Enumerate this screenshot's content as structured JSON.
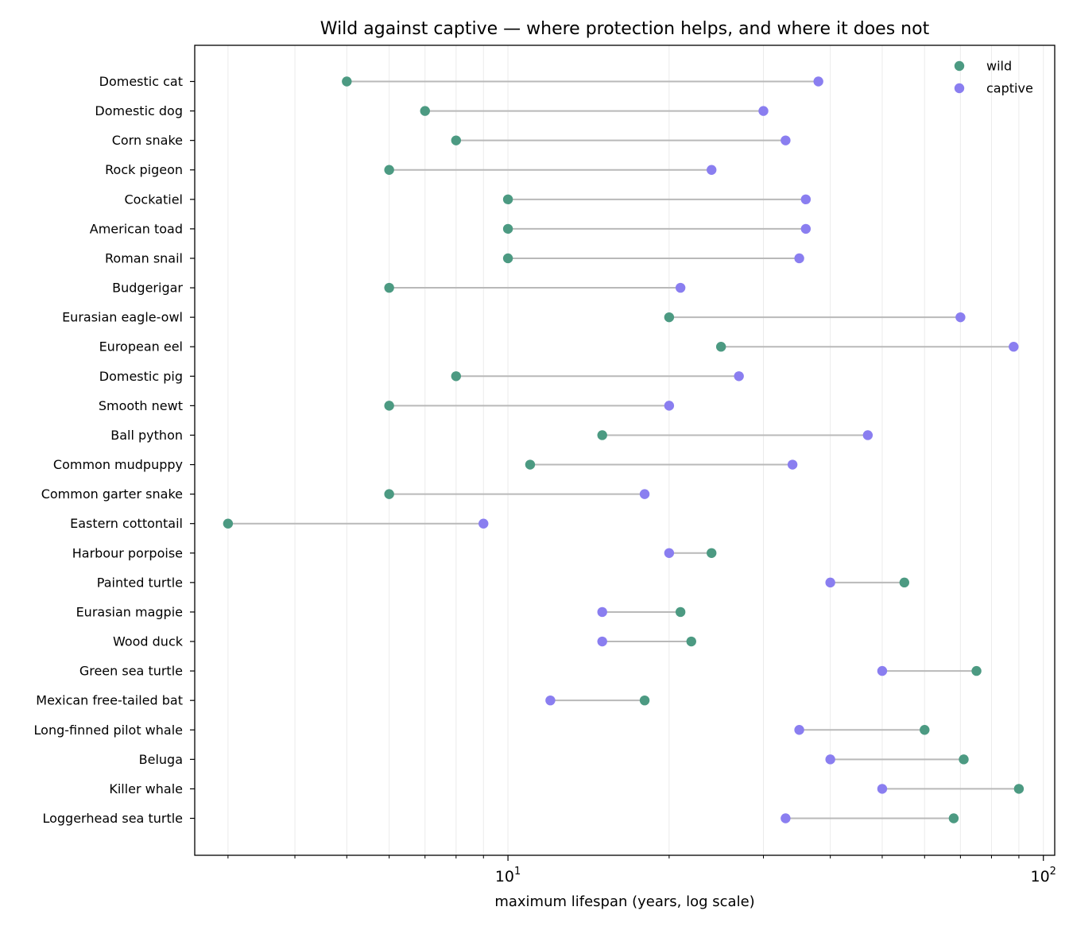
{
  "chart_data": {
    "type": "scatter",
    "subtype": "dumbbell",
    "title": "Wild against captive — where protection helps, and where it does not",
    "xlabel": "maximum lifespan (years, log scale)",
    "ylabel": "",
    "xscale": "log",
    "xlim": [
      2.6,
      105
    ],
    "x_ticks": [
      {
        "base": "10",
        "exp": "1",
        "value": 10
      },
      {
        "base": "10",
        "exp": "2",
        "value": 100
      }
    ],
    "grid": {
      "x_minor": true,
      "y": false
    },
    "legend": {
      "placement": "top-right",
      "entries": [
        "wild",
        "captive"
      ]
    },
    "colors": {
      "wild": "#4c9a82",
      "captive": "#8a7ef0",
      "connector": "#b9b9b9"
    },
    "categories": [
      "Domestic cat",
      "Domestic dog",
      "Corn snake",
      "Rock pigeon",
      "Cockatiel",
      "American toad",
      "Roman snail",
      "Budgerigar",
      "Eurasian eagle-owl",
      "European eel",
      "Domestic pig",
      "Smooth newt",
      "Ball python",
      "Common mudpuppy",
      "Common garter snake",
      "Eastern cottontail",
      "Harbour porpoise",
      "Painted turtle",
      "Eurasian magpie",
      "Wood duck",
      "Green sea turtle",
      "Mexican free-tailed bat",
      "Long-finned pilot whale",
      "Beluga",
      "Killer whale",
      "Loggerhead sea turtle"
    ],
    "series": [
      {
        "name": "wild",
        "values": [
          5,
          7,
          8,
          6,
          10,
          10,
          10,
          6,
          20,
          25,
          8,
          6,
          15,
          11,
          6,
          3,
          24,
          55,
          21,
          22,
          75,
          18,
          60,
          71,
          90,
          68
        ]
      },
      {
        "name": "captive",
        "values": [
          38,
          30,
          33,
          24,
          36,
          36,
          35,
          21,
          70,
          88,
          27,
          20,
          47,
          34,
          18,
          9,
          20,
          40,
          15,
          15,
          50,
          12,
          35,
          40,
          50,
          33
        ]
      }
    ]
  }
}
